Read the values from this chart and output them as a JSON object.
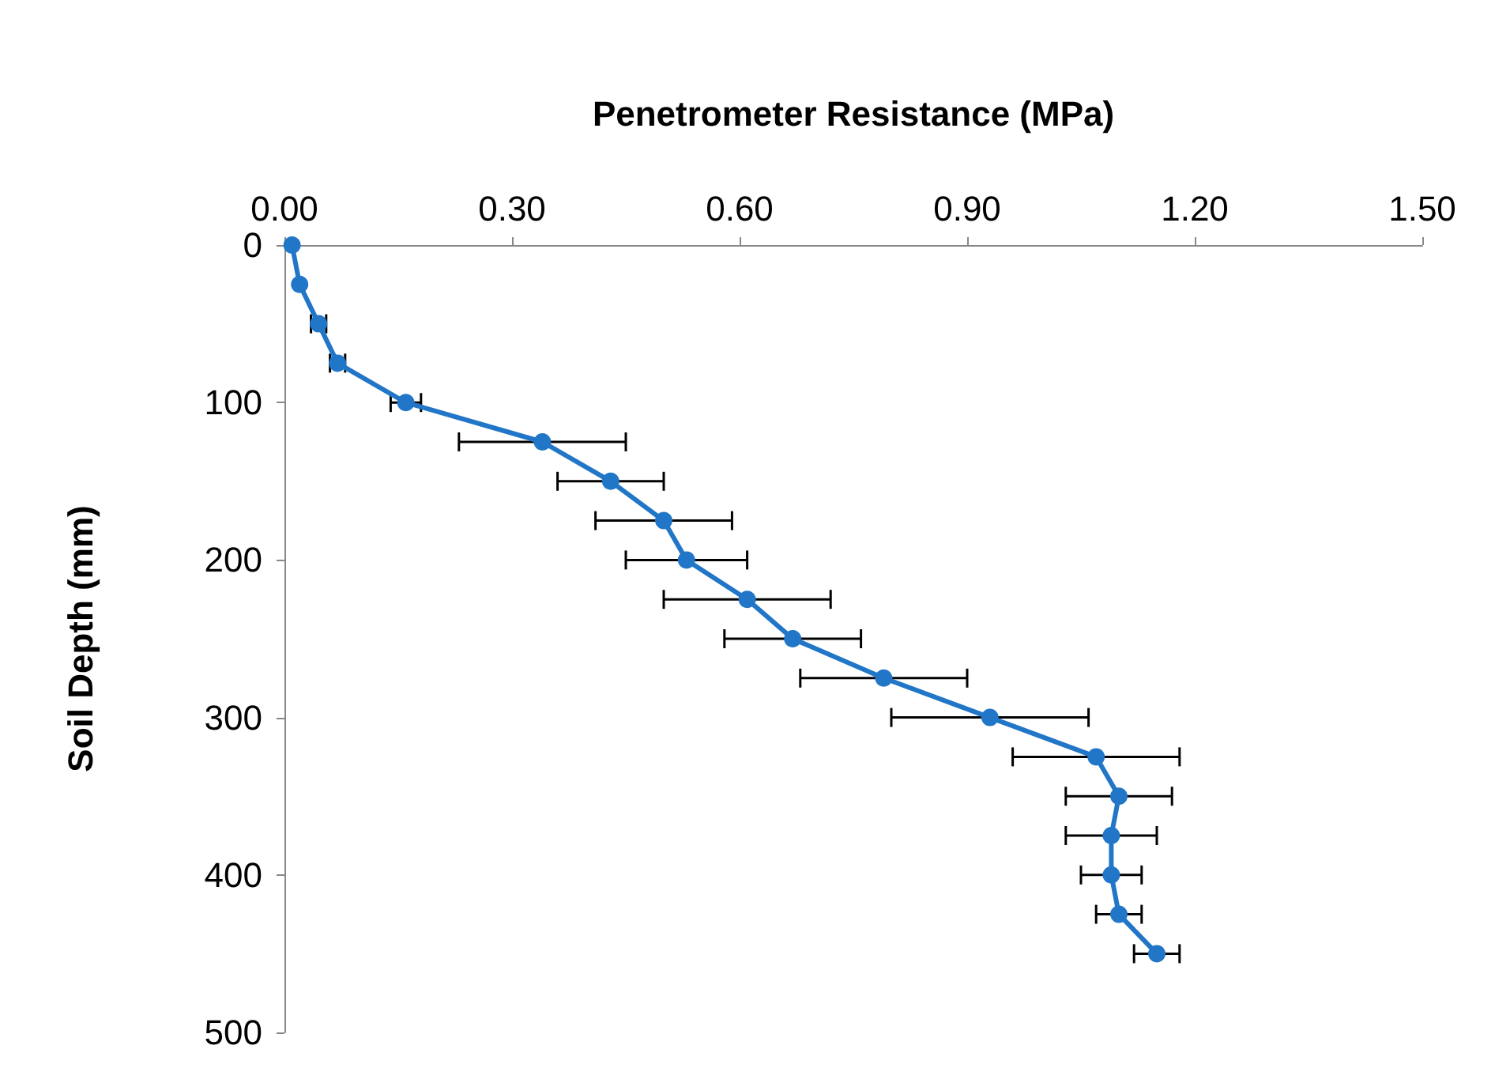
{
  "chart_data": {
    "type": "line",
    "xlabel": "Penetrometer Resistance (MPa)",
    "ylabel": "Soil Depth (mm)",
    "xlim": [
      0,
      1.5
    ],
    "xticks": [
      {
        "value": 0,
        "label": "0.00"
      },
      {
        "value": 0.3,
        "label": "0.30"
      },
      {
        "value": 0.6,
        "label": "0.60"
      },
      {
        "value": 0.9,
        "label": "0.90"
      },
      {
        "value": 1.2,
        "label": "1.20"
      },
      {
        "value": 1.5,
        "label": "1.50"
      }
    ],
    "ylim": [
      500,
      0
    ],
    "yticks": [
      0,
      100,
      200,
      300,
      400,
      500
    ],
    "marker": "circle",
    "line_style": "solid",
    "series": [
      {
        "color": "#2176c7",
        "x": [
          0.01,
          0.02,
          0.045,
          0.07,
          0.16,
          0.34,
          0.43,
          0.5,
          0.53,
          0.61,
          0.67,
          0.79,
          0.93,
          1.07,
          1.1,
          1.09,
          1.09,
          1.1,
          1.15
        ],
        "values": [
          0,
          25,
          50,
          75,
          100,
          125,
          150,
          175,
          200,
          225,
          250,
          275,
          300,
          325,
          350,
          375,
          400,
          425,
          450
        ],
        "xerrors": [
          null,
          null,
          0.01,
          0.01,
          0.02,
          0.11,
          0.07,
          0.09,
          0.08,
          0.11,
          0.09,
          0.11,
          0.13,
          0.11,
          0.07,
          0.06,
          0.04,
          0.03,
          0.03
        ]
      }
    ]
  }
}
